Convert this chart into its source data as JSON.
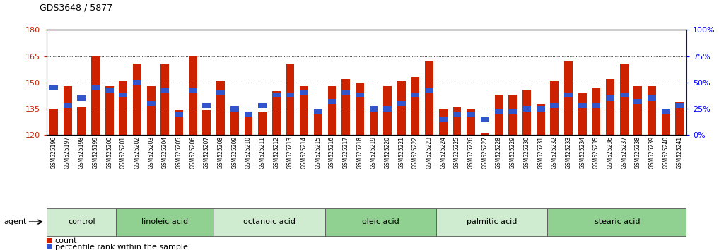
{
  "title": "GDS3648 / 5877",
  "samples": [
    "GSM525196",
    "GSM525197",
    "GSM525198",
    "GSM525199",
    "GSM525200",
    "GSM525201",
    "GSM525202",
    "GSM525203",
    "GSM525204",
    "GSM525205",
    "GSM525206",
    "GSM525207",
    "GSM525208",
    "GSM525209",
    "GSM525210",
    "GSM525211",
    "GSM525212",
    "GSM525213",
    "GSM525214",
    "GSM525215",
    "GSM525216",
    "GSM525217",
    "GSM525218",
    "GSM525219",
    "GSM525220",
    "GSM525221",
    "GSM525222",
    "GSM525223",
    "GSM525224",
    "GSM525225",
    "GSM525226",
    "GSM525227",
    "GSM525228",
    "GSM525229",
    "GSM525230",
    "GSM525231",
    "GSM525232",
    "GSM525233",
    "GSM525234",
    "GSM525235",
    "GSM525236",
    "GSM525237",
    "GSM525238",
    "GSM525239",
    "GSM525240",
    "GSM525241"
  ],
  "counts": [
    135,
    148,
    136,
    165,
    148,
    151,
    161,
    148,
    161,
    134,
    165,
    134,
    151,
    135,
    133,
    133,
    145,
    161,
    148,
    135,
    148,
    152,
    150,
    136,
    148,
    151,
    153,
    162,
    135,
    136,
    135,
    121,
    143,
    143,
    146,
    138,
    151,
    162,
    144,
    147,
    152,
    161,
    148,
    148,
    135,
    139
  ],
  "percentile_ranks": [
    45,
    28,
    35,
    45,
    42,
    38,
    50,
    30,
    42,
    20,
    42,
    28,
    40,
    25,
    20,
    28,
    38,
    38,
    40,
    22,
    32,
    40,
    38,
    25,
    25,
    30,
    38,
    42,
    15,
    20,
    20,
    15,
    22,
    22,
    25,
    25,
    28,
    38,
    28,
    28,
    35,
    38,
    32,
    35,
    22,
    28
  ],
  "groups": [
    {
      "name": "control",
      "start": 0,
      "end": 5,
      "color": "#d0ecd0"
    },
    {
      "name": "linoleic acid",
      "start": 5,
      "end": 12,
      "color": "#90d090"
    },
    {
      "name": "octanoic acid",
      "start": 12,
      "end": 20,
      "color": "#d0ecd0"
    },
    {
      "name": "oleic acid",
      "start": 20,
      "end": 28,
      "color": "#90d090"
    },
    {
      "name": "palmitic acid",
      "start": 28,
      "end": 36,
      "color": "#d0ecd0"
    },
    {
      "name": "stearic acid",
      "start": 36,
      "end": 46,
      "color": "#90d090"
    }
  ],
  "ymin": 120,
  "ymax": 180,
  "yticks": [
    120,
    135,
    150,
    165,
    180
  ],
  "bar_color": "#cc2200",
  "blue_color": "#3355cc",
  "plot_bg": "#ffffff",
  "fig_bg": "#ffffff",
  "right_axis_ticks": [
    0,
    25,
    50,
    75,
    100
  ],
  "right_axis_labels": [
    "0%",
    "25%",
    "50%",
    "75%",
    "100%"
  ],
  "agent_label": "agent"
}
